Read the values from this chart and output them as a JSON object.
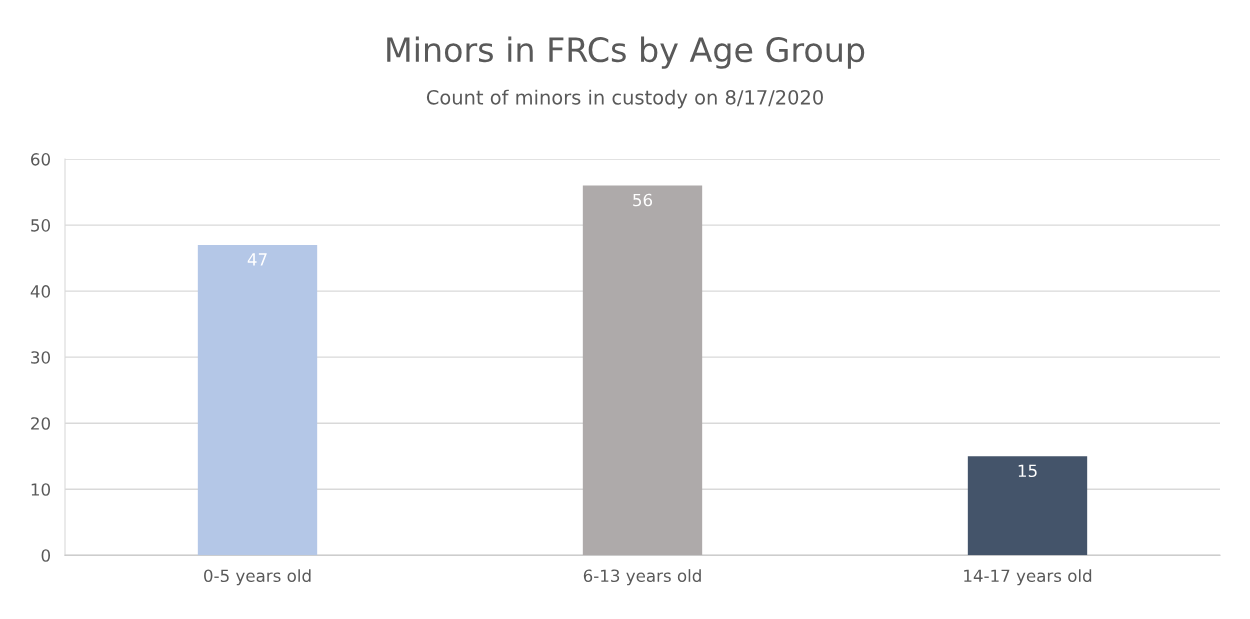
{
  "chart_data": {
    "type": "bar",
    "title": "Minors in FRCs by Age Group",
    "subtitle": "Count of minors in custody on 8/17/2020",
    "categories": [
      "0-5 years old",
      "6-13 years old",
      "14-17 years old"
    ],
    "values": [
      47,
      56,
      15
    ],
    "colors": [
      "#b4c7e7",
      "#aeaaaa",
      "#44546a"
    ],
    "ylim": [
      0,
      60
    ],
    "yticks": [
      0,
      10,
      20,
      30,
      40,
      50,
      60
    ],
    "grid": "y",
    "data_labels": true
  }
}
